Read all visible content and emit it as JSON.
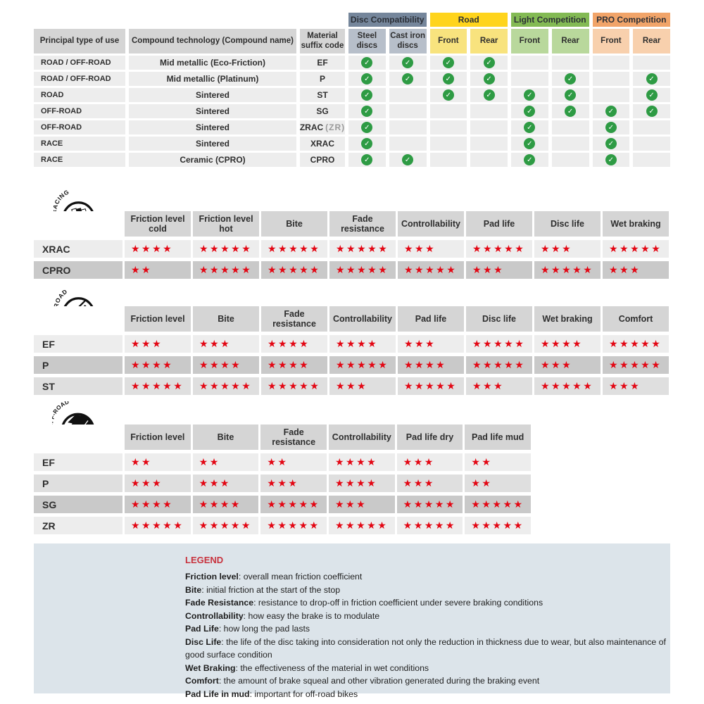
{
  "colors": {
    "band_disc": "#75869b",
    "sub_disc": "#b7bfca",
    "band_road": "#ffd41c",
    "sub_road": "#f8e37e",
    "band_light": "#83ba54",
    "sub_light": "#b9d89c",
    "band_pro": "#f1a469",
    "sub_pro": "#f8d0ad",
    "header_gray": "#d5d5d5",
    "row_light": "#ededed",
    "row_mid": "#dfdfdf",
    "row_dark": "#c9c9c9",
    "star_red": "#e30613",
    "check_green": "#2e9b44",
    "legend_bg": "#dce4ea",
    "legend_title_red": "#c8333e"
  },
  "compatibility": {
    "col_headers": [
      "Principal type of use",
      "Compound technology (Compound name)",
      "Material suffix code"
    ],
    "groups": [
      {
        "label": "Disc Compatibility",
        "subs": [
          "Steel discs",
          "Cast iron discs"
        ]
      },
      {
        "label": "Road",
        "subs": [
          "Front",
          "Rear"
        ]
      },
      {
        "label": "Light Competition",
        "subs": [
          "Front",
          "Rear"
        ]
      },
      {
        "label": "PRO Competition",
        "subs": [
          "Front",
          "Rear"
        ]
      }
    ],
    "rows": [
      {
        "use": "ROAD / OFF-ROAD",
        "tech": "Mid metallic (Eco-Friction)",
        "code": "EF",
        "code_note": "",
        "checks": [
          1,
          1,
          1,
          1,
          0,
          0,
          0,
          0
        ]
      },
      {
        "use": "ROAD / OFF-ROAD",
        "tech": "Mid metallic (Platinum)",
        "code": "P",
        "code_note": "",
        "checks": [
          1,
          1,
          1,
          1,
          0,
          1,
          0,
          1
        ]
      },
      {
        "use": "ROAD",
        "tech": "Sintered",
        "code": "ST",
        "code_note": "",
        "checks": [
          1,
          0,
          1,
          1,
          1,
          1,
          0,
          1
        ]
      },
      {
        "use": "OFF-ROAD",
        "tech": "Sintered",
        "code": "SG",
        "code_note": "",
        "checks": [
          1,
          0,
          0,
          0,
          1,
          1,
          1,
          1
        ]
      },
      {
        "use": "OFF-ROAD",
        "tech": "Sintered",
        "code": "ZRAC",
        "code_note": "(ZR)",
        "checks": [
          1,
          0,
          0,
          0,
          1,
          0,
          1,
          0
        ]
      },
      {
        "use": "RACE",
        "tech": "Sintered",
        "code": "XRAC",
        "code_note": "",
        "checks": [
          1,
          0,
          0,
          0,
          1,
          0,
          1,
          0
        ]
      },
      {
        "use": "RACE",
        "tech": "Ceramic (CPRO)",
        "code": "CPRO",
        "code_note": "",
        "checks": [
          1,
          1,
          0,
          0,
          1,
          0,
          1,
          0
        ]
      }
    ]
  },
  "sections": [
    {
      "id": "racing",
      "icon_label": "RACING",
      "columns": [
        "Friction level cold",
        "Friction level hot",
        "Bite",
        "Fade resistance",
        "Controllability",
        "Pad life",
        "Disc life",
        "Wet braking"
      ],
      "rows": [
        {
          "label": "XRAC",
          "shade": "light",
          "stars": [
            4,
            5,
            5,
            5,
            3,
            5,
            3,
            5
          ]
        },
        {
          "label": "CPRO",
          "shade": "dark",
          "stars": [
            2,
            5,
            5,
            5,
            5,
            3,
            5,
            3
          ]
        }
      ]
    },
    {
      "id": "road",
      "icon_label": "ROAD",
      "columns": [
        "Friction level",
        "Bite",
        "Fade resistance",
        "Controllability",
        "Pad life",
        "Disc life",
        "Wet braking",
        "Comfort"
      ],
      "rows": [
        {
          "label": "EF",
          "shade": "light",
          "stars": [
            3,
            3,
            4,
            4,
            3,
            5,
            4,
            5
          ]
        },
        {
          "label": "P",
          "shade": "dark",
          "stars": [
            4,
            4,
            4,
            5,
            4,
            5,
            3,
            5
          ]
        },
        {
          "label": "ST",
          "shade": "mid",
          "stars": [
            5,
            5,
            5,
            3,
            5,
            3,
            5,
            3
          ]
        }
      ]
    },
    {
      "id": "offroad",
      "icon_label": "OFF-ROAD",
      "columns": [
        "Friction level",
        "Bite",
        "Fade resistance",
        "Controllability",
        "Pad life dry",
        "Pad life mud"
      ],
      "rows": [
        {
          "label": "EF",
          "shade": "light",
          "stars": [
            2,
            2,
            2,
            4,
            3,
            2
          ]
        },
        {
          "label": "P",
          "shade": "mid",
          "stars": [
            3,
            3,
            3,
            4,
            3,
            2
          ]
        },
        {
          "label": "SG",
          "shade": "dark",
          "stars": [
            4,
            4,
            5,
            3,
            5,
            5
          ]
        },
        {
          "label": "ZR",
          "shade": "light",
          "stars": [
            5,
            5,
            5,
            5,
            5,
            5
          ]
        }
      ]
    }
  ],
  "legend": {
    "title": "LEGEND",
    "items": [
      {
        "term": "Friction level",
        "desc": "overall mean friction coefficient"
      },
      {
        "term": "Bite",
        "desc": "initial friction at the start of the stop"
      },
      {
        "term": "Fade Resistance",
        "desc": "resistance to drop-off in friction coefficient under severe braking conditions"
      },
      {
        "term": "Controllability",
        "desc": "how easy the brake is to modulate"
      },
      {
        "term": "Pad Life",
        "desc": "how long the pad lasts"
      },
      {
        "term": "Disc Life",
        "desc": "the life of the disc taking into consideration not only the reduction in thickness due to wear, but also maintenance of good surface condition"
      },
      {
        "term": "Wet Braking",
        "desc": "the effectiveness of the material in wet conditions"
      },
      {
        "term": "Comfort",
        "desc": "the amount of brake squeal and other vibration generated during the braking event"
      },
      {
        "term": "Pad Life in mud",
        "desc": "important for off-road bikes"
      }
    ]
  },
  "glyphs": {
    "check": "✓",
    "star": "★"
  }
}
